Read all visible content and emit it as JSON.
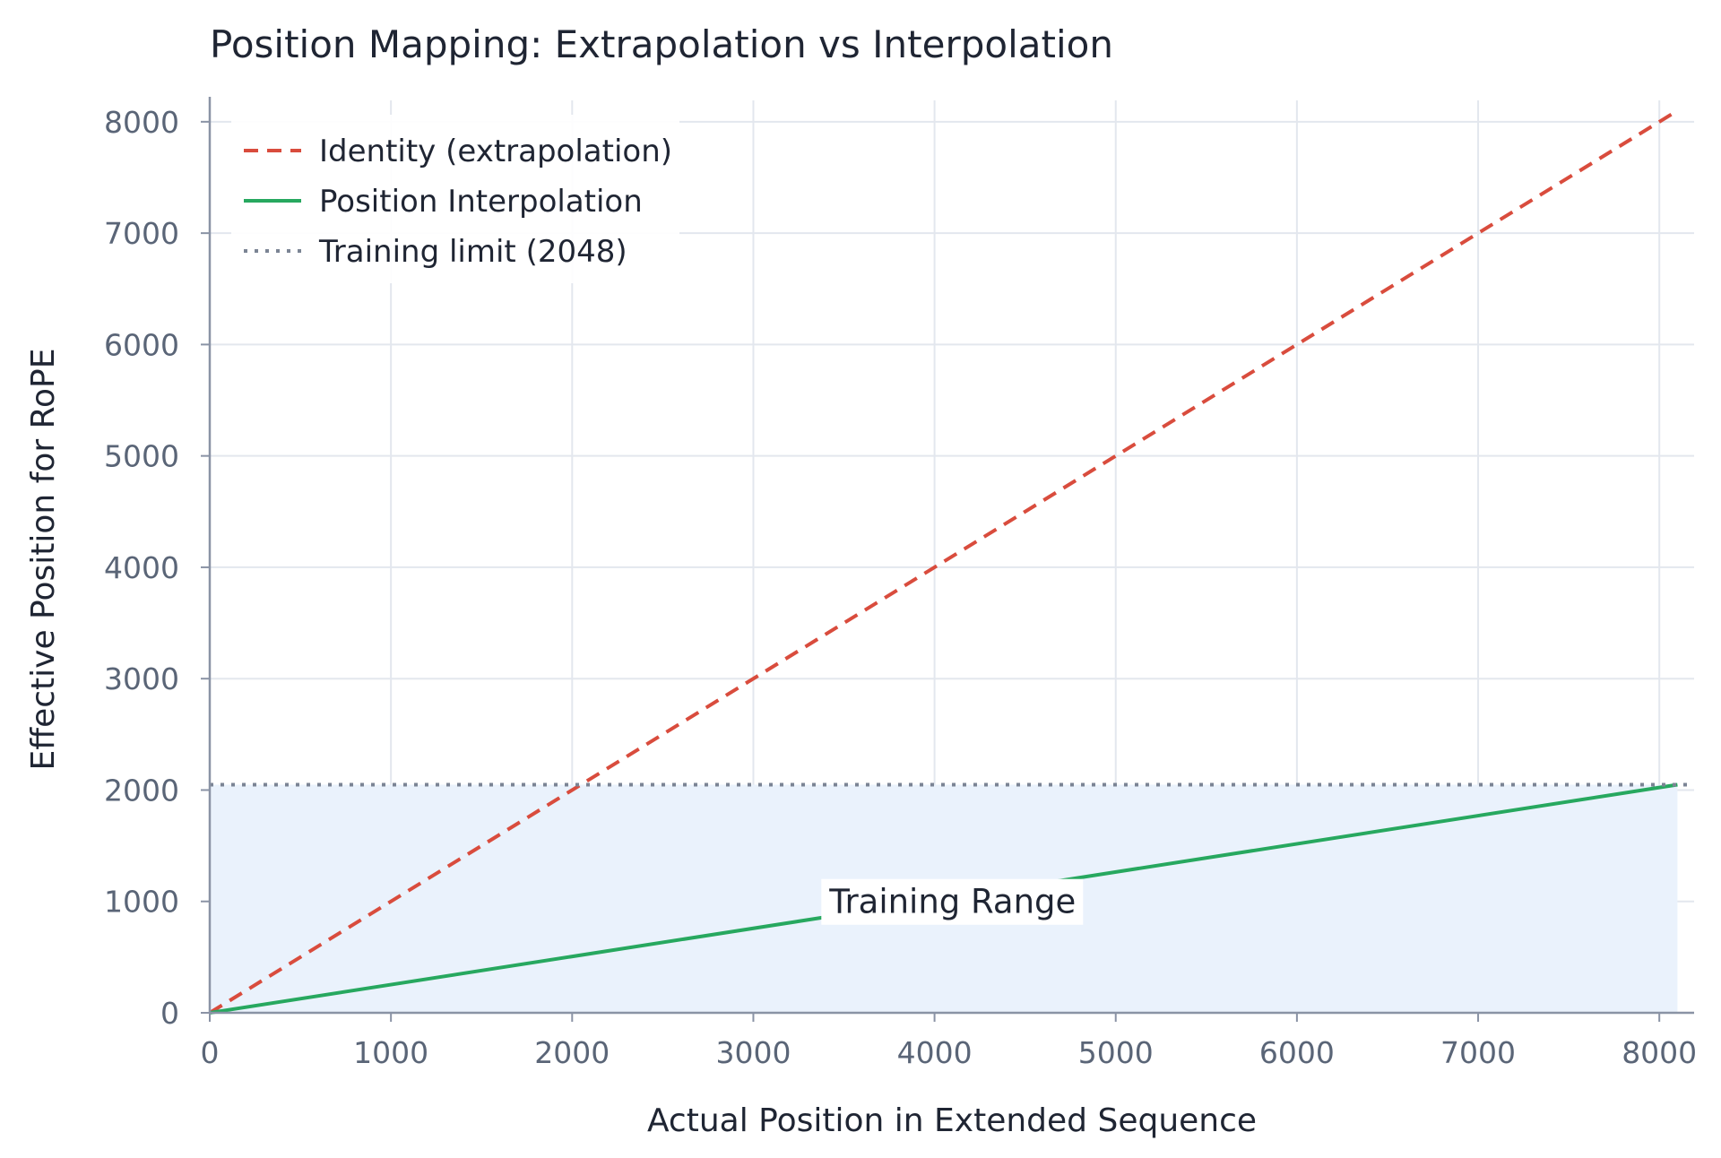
{
  "chart_data": {
    "type": "line",
    "title": "Position Mapping: Extrapolation vs Interpolation",
    "xlabel": "Actual Position in Extended Sequence",
    "ylabel": "Effective Position for RoPE",
    "xlim": [
      0,
      8192
    ],
    "ylim": [
      0,
      8192
    ],
    "xticks": [
      0,
      1000,
      2000,
      3000,
      4000,
      5000,
      6000,
      7000,
      8000
    ],
    "yticks": [
      0,
      1000,
      2000,
      3000,
      4000,
      5000,
      6000,
      7000,
      8000
    ],
    "grid": true,
    "legend_position": "upper-left",
    "series": [
      {
        "name": "Identity (extrapolation)",
        "style": "dashed",
        "color": "#d94c3d",
        "x": [
          0,
          8100
        ],
        "y": [
          0,
          8100
        ]
      },
      {
        "name": "Position Interpolation",
        "style": "solid",
        "color": "#27a85f",
        "x": [
          0,
          8100
        ],
        "y": [
          0,
          2048
        ]
      },
      {
        "name": "Training limit (2048)",
        "style": "dotted",
        "color": "#7b8494",
        "y_constant": 2048
      }
    ],
    "shaded_region": {
      "x": [
        0,
        8100
      ],
      "y": [
        0,
        2048
      ],
      "color": "#eaf2fc"
    },
    "annotations": [
      {
        "text": "Training Range",
        "x": 4100,
        "y": 1000
      }
    ]
  }
}
